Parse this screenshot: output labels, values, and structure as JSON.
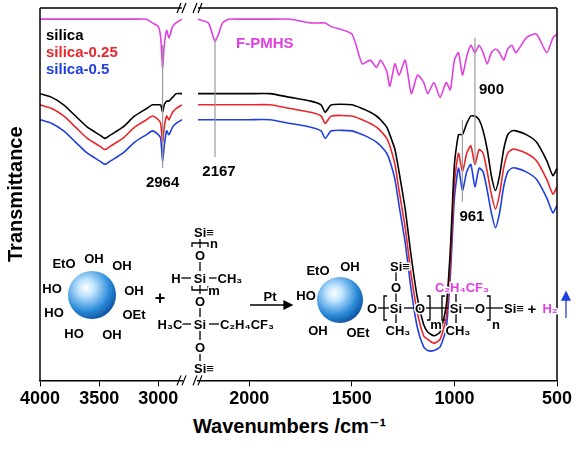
{
  "chart_data": [
    {
      "type": "line",
      "y_label": "Transmittance",
      "x": [
        4000,
        3900,
        3800,
        3700,
        3600,
        3500,
        3450,
        3400,
        3300,
        3200,
        3100,
        3050,
        3000,
        2980,
        2964,
        2950,
        2930,
        2910,
        2880,
        2850,
        2800
      ],
      "series": [
        {
          "name": "F-PMHS",
          "color": "#e040e0",
          "values": [
            97,
            97,
            97,
            97,
            97,
            97,
            97,
            97,
            97,
            97,
            97,
            96,
            95,
            92,
            84,
            90,
            94,
            92,
            95,
            96,
            97
          ]
        },
        {
          "name": "silica",
          "color": "#000000",
          "values": [
            77,
            76,
            74,
            71,
            68,
            66,
            65,
            66,
            68,
            71,
            73,
            74,
            74,
            74,
            72,
            74,
            75,
            75,
            76,
            77,
            77
          ]
        },
        {
          "name": "silica-0.25",
          "color": "#e8262b",
          "values": [
            74,
            73,
            71,
            68,
            65,
            63,
            62,
            63,
            65,
            68,
            70,
            71,
            70,
            69,
            64,
            68,
            71,
            70,
            72,
            73,
            74
          ]
        },
        {
          "name": "silica-0.5",
          "color": "#1f3fe0",
          "values": [
            70,
            69,
            67,
            64,
            61,
            59,
            58,
            59,
            61,
            64,
            66,
            67,
            66,
            65,
            59,
            63,
            67,
            66,
            68,
            69,
            70
          ]
        }
      ],
      "xlim": [
        4000,
        2800
      ],
      "xticks": [
        4000,
        3500,
        3000
      ],
      "ylim": [
        0,
        100
      ],
      "tick_labels": "x",
      "grid": false,
      "annotations": [
        {
          "text": "2964",
          "x": 2964
        }
      ]
    },
    {
      "type": "line",
      "x_label": "Wavenumbers /cm⁻¹",
      "x": [
        2250,
        2200,
        2180,
        2167,
        2150,
        2130,
        2100,
        2050,
        2000,
        1900,
        1800,
        1700,
        1650,
        1630,
        1600,
        1500,
        1450,
        1410,
        1380,
        1360,
        1330,
        1315,
        1290,
        1270,
        1240,
        1210,
        1180,
        1150,
        1130,
        1100,
        1070,
        1040,
        1020,
        1000,
        980,
        961,
        940,
        920,
        900,
        880,
        860,
        840,
        820,
        800,
        780,
        760,
        740,
        720,
        700,
        650,
        600,
        550,
        520,
        500
      ],
      "series": [
        {
          "name": "F-PMHS",
          "color": "#e040e0",
          "values": [
            97,
            96,
            93,
            91,
            93,
            96,
            97,
            97,
            97,
            97,
            97,
            96,
            96,
            96,
            95,
            93,
            85,
            86,
            84,
            86,
            83,
            79,
            85,
            82,
            86,
            77,
            82,
            80,
            77,
            80,
            76,
            80,
            78,
            86,
            88,
            82,
            87,
            90,
            88,
            90,
            88,
            85,
            88,
            89,
            88,
            86,
            89,
            90,
            88,
            92,
            93,
            88,
            92,
            93
          ]
        },
        {
          "name": "silica",
          "color": "#000000",
          "values": [
            77,
            77,
            77,
            77,
            77,
            77,
            77,
            77,
            77,
            77,
            76,
            75,
            74,
            72,
            74,
            74,
            73,
            72,
            71,
            70,
            68,
            66,
            62,
            56,
            46,
            33,
            22,
            15,
            13,
            12,
            13,
            20,
            35,
            58,
            66,
            66,
            69,
            71,
            71,
            70,
            67,
            62,
            55,
            51,
            55,
            62,
            66,
            67,
            67,
            66,
            64,
            59,
            55,
            57
          ]
        },
        {
          "name": "silica-0.25",
          "color": "#e8262b",
          "values": [
            74,
            74,
            74,
            74,
            74,
            74,
            74,
            74,
            74,
            74,
            73,
            72,
            71,
            69,
            71,
            71,
            70,
            69,
            68,
            67,
            65,
            63,
            58,
            51,
            41,
            28,
            18,
            12,
            11,
            10,
            11,
            17,
            31,
            53,
            61,
            56,
            61,
            63,
            58,
            62,
            61,
            56,
            50,
            46,
            50,
            57,
            61,
            62,
            62,
            61,
            59,
            54,
            50,
            52
          ]
        },
        {
          "name": "silica-0.5",
          "color": "#1f3fe0",
          "values": [
            70,
            70,
            70,
            70,
            70,
            70,
            70,
            70,
            70,
            70,
            69,
            68,
            67,
            65,
            67,
            67,
            66,
            65,
            64,
            63,
            61,
            59,
            54,
            47,
            37,
            24,
            14,
            9,
            8,
            8,
            9,
            14,
            28,
            49,
            57,
            51,
            56,
            58,
            52,
            57,
            56,
            51,
            45,
            41,
            45,
            52,
            56,
            57,
            57,
            56,
            54,
            49,
            45,
            47
          ]
        }
      ],
      "xlim": [
        2250,
        500
      ],
      "xticks": [
        2000,
        1500,
        1000,
        500
      ],
      "ylim": [
        0,
        100
      ],
      "tick_labels": "x",
      "grid": false,
      "annotations": [
        {
          "text": "2167",
          "x": 2167
        },
        {
          "text": "961",
          "x": 961
        },
        {
          "text": "900",
          "x": 900
        }
      ]
    }
  ],
  "scheme": {
    "silica": [
      "EtO",
      "OH",
      "OH",
      "HO",
      "OH",
      "HO",
      "OEt",
      "HO",
      "OH"
    ],
    "plus": "+",
    "reactant": [
      "Si≡",
      "O",
      "H",
      "Si",
      "CH₃",
      "O",
      "H₃C",
      "Si",
      "C₂H₄CF₃",
      "O",
      "Si≡",
      "n",
      "m"
    ],
    "catalyst": "Pt",
    "product_silica": [
      "EtO",
      "OH",
      "HO",
      "OH",
      "OEt"
    ],
    "product": [
      "O",
      "Si",
      "O",
      "Si",
      "O",
      "Si≡",
      "O",
      "Si≡",
      "CH₃",
      "C₂H₄CF₃",
      "CH₃",
      "m",
      "n"
    ],
    "gas": [
      "+",
      "H₂"
    ]
  }
}
